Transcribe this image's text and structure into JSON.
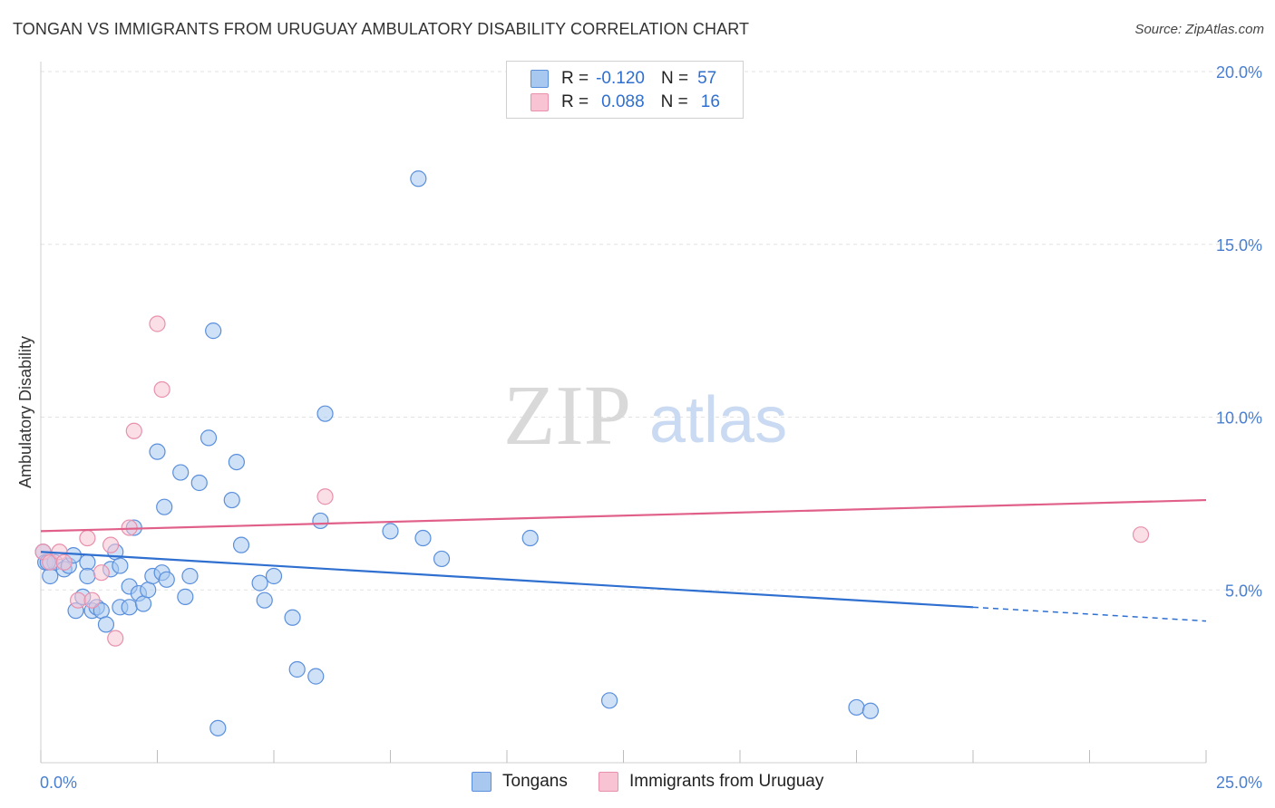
{
  "title": "TONGAN VS IMMIGRANTS FROM URUGUAY AMBULATORY DISABILITY CORRELATION CHART",
  "source": "Source: ZipAtlas.com",
  "watermark": {
    "zip": "ZIP",
    "atlas": "atlas"
  },
  "legend": {
    "rows": [
      {
        "r_label": "R =",
        "r_value": "-0.120",
        "n_label": "N =",
        "n_value": "57",
        "color": "#a8c8f0",
        "border": "#5a8fdc"
      },
      {
        "r_label": "R =",
        "r_value": "0.088",
        "n_label": "N =",
        "n_value": "16",
        "color": "#f8c4d4",
        "border": "#e890ac"
      }
    ]
  },
  "bottom_legend": {
    "tongans": "Tongans",
    "uruguay": "Immigrants from Uruguay"
  },
  "chart_data": {
    "type": "scatter",
    "xlabel": "",
    "ylabel": "Ambulatory Disability",
    "xlim": [
      0,
      25
    ],
    "ylim": [
      0,
      20
    ],
    "x_tick_labels": [
      "0.0%",
      "25.0%"
    ],
    "y_ticks": [
      5,
      10,
      15,
      20
    ],
    "y_tick_labels": [
      "5.0%",
      "10.0%",
      "15.0%",
      "20.0%"
    ],
    "grid": true,
    "series": [
      {
        "name": "Tongans",
        "color": "#a8c8f0",
        "stroke": "#5a8fdc",
        "trend_color": "#2e6fd0",
        "trend": {
          "x0": 0,
          "y0": 6.1,
          "x1": 20,
          "y1": 4.5,
          "dashed_to": 25,
          "dashed_y": 4.1
        },
        "points": [
          [
            0.05,
            6.1
          ],
          [
            0.1,
            5.8
          ],
          [
            0.2,
            5.4
          ],
          [
            0.3,
            5.8
          ],
          [
            0.5,
            5.6
          ],
          [
            0.6,
            5.7
          ],
          [
            0.7,
            6.0
          ],
          [
            0.75,
            4.4
          ],
          [
            0.9,
            4.8
          ],
          [
            1.0,
            5.8
          ],
          [
            1.0,
            5.4
          ],
          [
            1.1,
            4.4
          ],
          [
            1.2,
            4.5
          ],
          [
            1.3,
            4.4
          ],
          [
            1.4,
            4.0
          ],
          [
            1.5,
            5.6
          ],
          [
            1.6,
            6.1
          ],
          [
            1.7,
            4.5
          ],
          [
            1.7,
            5.7
          ],
          [
            1.9,
            4.5
          ],
          [
            1.9,
            5.1
          ],
          [
            2.0,
            6.8
          ],
          [
            2.1,
            4.9
          ],
          [
            2.2,
            4.6
          ],
          [
            2.3,
            5.0
          ],
          [
            2.4,
            5.4
          ],
          [
            2.5,
            9.0
          ],
          [
            2.6,
            5.5
          ],
          [
            2.65,
            7.4
          ],
          [
            2.7,
            5.3
          ],
          [
            3.0,
            8.4
          ],
          [
            3.1,
            4.8
          ],
          [
            3.2,
            5.4
          ],
          [
            3.4,
            8.1
          ],
          [
            3.6,
            9.4
          ],
          [
            3.7,
            12.5
          ],
          [
            3.8,
            1.0
          ],
          [
            4.1,
            7.6
          ],
          [
            4.2,
            8.7
          ],
          [
            4.3,
            6.3
          ],
          [
            4.7,
            5.2
          ],
          [
            4.8,
            4.7
          ],
          [
            5.0,
            5.4
          ],
          [
            5.4,
            4.2
          ],
          [
            5.5,
            2.7
          ],
          [
            5.9,
            2.5
          ],
          [
            6.0,
            7.0
          ],
          [
            6.1,
            10.1
          ],
          [
            7.5,
            6.7
          ],
          [
            8.1,
            16.9
          ],
          [
            8.2,
            6.5
          ],
          [
            8.6,
            5.9
          ],
          [
            10.5,
            6.5
          ],
          [
            12.2,
            1.8
          ],
          [
            17.5,
            1.6
          ],
          [
            17.8,
            1.5
          ],
          [
            0.15,
            5.8
          ]
        ]
      },
      {
        "name": "Immigrants from Uruguay",
        "color": "#f8c4d4",
        "stroke": "#e890ac",
        "trend_color": "#e0608a",
        "trend": {
          "x0": 0,
          "y0": 6.7,
          "x1": 25,
          "y1": 7.6
        },
        "points": [
          [
            0.05,
            6.1
          ],
          [
            0.2,
            5.8
          ],
          [
            0.4,
            6.1
          ],
          [
            0.8,
            4.7
          ],
          [
            1.0,
            6.5
          ],
          [
            1.1,
            4.7
          ],
          [
            1.3,
            5.5
          ],
          [
            1.5,
            6.3
          ],
          [
            1.6,
            3.6
          ],
          [
            1.9,
            6.8
          ],
          [
            2.0,
            9.6
          ],
          [
            2.5,
            12.7
          ],
          [
            2.6,
            10.8
          ],
          [
            6.1,
            7.7
          ],
          [
            23.6,
            6.6
          ],
          [
            0.5,
            5.8
          ]
        ]
      }
    ]
  }
}
